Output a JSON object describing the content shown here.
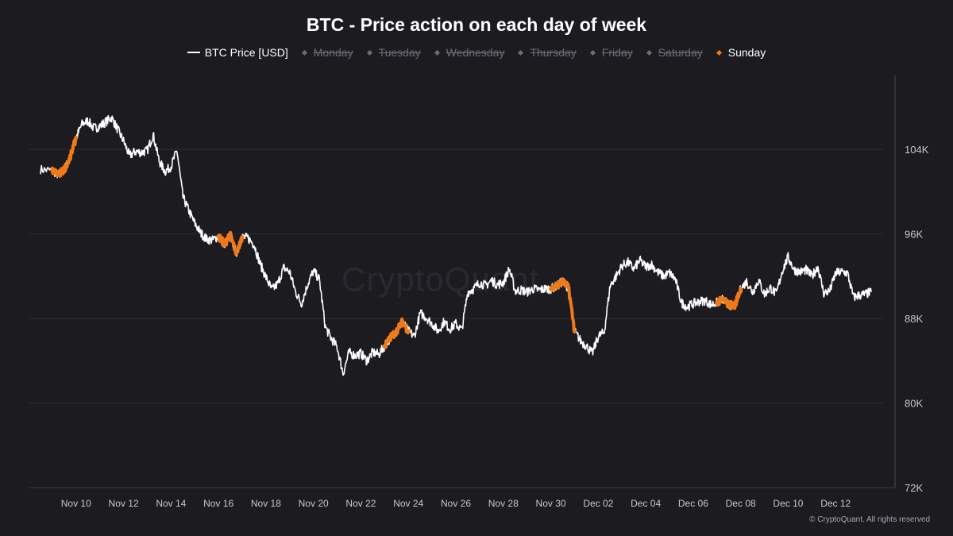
{
  "chart_title": "BTC - Price action on each day of week",
  "legend": {
    "items": [
      {
        "label": "BTC Price [USD]",
        "type": "line",
        "color": "#ffffff",
        "hidden": false
      },
      {
        "label": "Monday",
        "type": "marker",
        "color": "#6e6d75",
        "hidden": true
      },
      {
        "label": "Tuesday",
        "type": "marker",
        "color": "#6e6d75",
        "hidden": true
      },
      {
        "label": "Wednesday",
        "type": "marker",
        "color": "#6e6d75",
        "hidden": true
      },
      {
        "label": "Thursday",
        "type": "marker",
        "color": "#6e6d75",
        "hidden": true
      },
      {
        "label": "Friday",
        "type": "marker",
        "color": "#6e6d75",
        "hidden": true
      },
      {
        "label": "Saturday",
        "type": "marker",
        "color": "#6e6d75",
        "hidden": true
      },
      {
        "label": "Sunday",
        "type": "marker",
        "color": "#f07a1a",
        "hidden": false
      }
    ]
  },
  "watermark": "CryptoQuant",
  "footer": "© CryptoQuant. All rights reserved",
  "colors": {
    "background": "#1c1b20",
    "price_line": "#ffffff",
    "sunday": "#f07a1a",
    "grid": "#2e2d34",
    "axis_text": "#c8c7cc"
  },
  "chart_data": {
    "type": "line",
    "title": "BTC - Price action on each day of week",
    "xlabel": "",
    "ylabel": "",
    "x_range": [
      "2025-11-08",
      "2025-12-13"
    ],
    "x_tick_labels": [
      "Nov 10",
      "Nov 12",
      "Nov 14",
      "Nov 16",
      "Nov 18",
      "Nov 20",
      "Nov 22",
      "Nov 24",
      "Nov 26",
      "Nov 28",
      "Nov 30",
      "Dec 02",
      "Dec 04",
      "Dec 06",
      "Dec 08",
      "Dec 10",
      "Dec 12"
    ],
    "y_axis_position": "right",
    "ylim": [
      72000,
      111000
    ],
    "y_ticks": [
      72000,
      80000,
      88000,
      96000,
      104000
    ],
    "y_tick_labels": [
      "72K",
      "80K",
      "88K",
      "96K",
      "104K"
    ],
    "grid": "horizontal",
    "legend_position": "top-center",
    "series": [
      {
        "name": "BTC Price [USD]",
        "color": "#ffffff",
        "points": [
          [
            "2025-11-08 12:00",
            102100
          ],
          [
            "2025-11-09 00:00",
            102000
          ],
          [
            "2025-11-09 06:00",
            101600
          ],
          [
            "2025-11-09 12:00",
            102100
          ],
          [
            "2025-11-09 18:00",
            103200
          ],
          [
            "2025-11-10 00:00",
            105100
          ],
          [
            "2025-11-10 06:00",
            106400
          ],
          [
            "2025-11-10 12:00",
            106700
          ],
          [
            "2025-11-10 18:00",
            106000
          ],
          [
            "2025-11-11 00:00",
            106200
          ],
          [
            "2025-11-11 06:00",
            106600
          ],
          [
            "2025-11-11 12:00",
            107000
          ],
          [
            "2025-11-11 18:00",
            105900
          ],
          [
            "2025-11-12 00:00",
            104800
          ],
          [
            "2025-11-12 06:00",
            103400
          ],
          [
            "2025-11-12 12:00",
            103800
          ],
          [
            "2025-11-12 18:00",
            103700
          ],
          [
            "2025-11-13 00:00",
            103900
          ],
          [
            "2025-11-13 06:00",
            105400
          ],
          [
            "2025-11-13 12:00",
            102900
          ],
          [
            "2025-11-13 18:00",
            101900
          ],
          [
            "2025-11-14 00:00",
            102400
          ],
          [
            "2025-11-14 06:00",
            103900
          ],
          [
            "2025-11-14 12:00",
            99500
          ],
          [
            "2025-11-14 18:00",
            98200
          ],
          [
            "2025-11-15 00:00",
            97000
          ],
          [
            "2025-11-15 06:00",
            96100
          ],
          [
            "2025-11-15 12:00",
            95500
          ],
          [
            "2025-11-15 18:00",
            95400
          ],
          [
            "2025-11-16 00:00",
            95800
          ],
          [
            "2025-11-16 06:00",
            95000
          ],
          [
            "2025-11-16 12:00",
            95900
          ],
          [
            "2025-11-16 18:00",
            94200
          ],
          [
            "2025-11-17 00:00",
            95700
          ],
          [
            "2025-11-17 06:00",
            95600
          ],
          [
            "2025-11-17 12:00",
            95000
          ],
          [
            "2025-11-17 18:00",
            93200
          ],
          [
            "2025-11-18 00:00",
            91900
          ],
          [
            "2025-11-18 06:00",
            90700
          ],
          [
            "2025-11-18 12:00",
            91300
          ],
          [
            "2025-11-18 18:00",
            92800
          ],
          [
            "2025-11-19 00:00",
            92400
          ],
          [
            "2025-11-19 06:00",
            90500
          ],
          [
            "2025-11-19 12:00",
            89400
          ],
          [
            "2025-11-19 18:00",
            91200
          ],
          [
            "2025-11-20 00:00",
            92500
          ],
          [
            "2025-11-20 06:00",
            91700
          ],
          [
            "2025-11-20 12:00",
            87200
          ],
          [
            "2025-11-20 18:00",
            86100
          ],
          [
            "2025-11-21 00:00",
            85300
          ],
          [
            "2025-11-21 06:00",
            82800
          ],
          [
            "2025-11-21 12:00",
            84800
          ],
          [
            "2025-11-21 18:00",
            84500
          ],
          [
            "2025-11-22 00:00",
            84700
          ],
          [
            "2025-11-22 06:00",
            84000
          ],
          [
            "2025-11-22 12:00",
            84800
          ],
          [
            "2025-11-22 18:00",
            84600
          ],
          [
            "2025-11-23 00:00",
            85400
          ],
          [
            "2025-11-23 06:00",
            86200
          ],
          [
            "2025-11-23 12:00",
            86800
          ],
          [
            "2025-11-23 18:00",
            87700
          ],
          [
            "2025-11-24 00:00",
            86800
          ],
          [
            "2025-11-24 06:00",
            86300
          ],
          [
            "2025-11-24 12:00",
            88500
          ],
          [
            "2025-11-24 18:00",
            88100
          ],
          [
            "2025-11-25 00:00",
            87500
          ],
          [
            "2025-11-25 06:00",
            86800
          ],
          [
            "2025-11-25 12:00",
            87700
          ],
          [
            "2025-11-25 18:00",
            87000
          ],
          [
            "2025-11-26 00:00",
            87500
          ],
          [
            "2025-11-26 06:00",
            86900
          ],
          [
            "2025-11-26 12:00",
            90500
          ],
          [
            "2025-11-26 18:00",
            90800
          ],
          [
            "2025-11-27 00:00",
            91400
          ],
          [
            "2025-11-27 06:00",
            91100
          ],
          [
            "2025-11-27 12:00",
            91600
          ],
          [
            "2025-11-27 18:00",
            91200
          ],
          [
            "2025-11-28 00:00",
            91400
          ],
          [
            "2025-11-28 06:00",
            92700
          ],
          [
            "2025-11-28 12:00",
            90600
          ],
          [
            "2025-11-28 18:00",
            90700
          ],
          [
            "2025-11-29 00:00",
            90500
          ],
          [
            "2025-11-29 06:00",
            90800
          ],
          [
            "2025-11-29 12:00",
            90700
          ],
          [
            "2025-11-29 18:00",
            90800
          ],
          [
            "2025-11-30 00:00",
            90800
          ],
          [
            "2025-11-30 06:00",
            91100
          ],
          [
            "2025-11-30 12:00",
            91500
          ],
          [
            "2025-11-30 18:00",
            90900
          ],
          [
            "2025-12-01 00:00",
            86800
          ],
          [
            "2025-12-01 06:00",
            85900
          ],
          [
            "2025-12-01 12:00",
            85400
          ],
          [
            "2025-12-01 18:00",
            84700
          ],
          [
            "2025-12-02 00:00",
            86300
          ],
          [
            "2025-12-02 06:00",
            86700
          ],
          [
            "2025-12-02 12:00",
            91100
          ],
          [
            "2025-12-02 18:00",
            92000
          ],
          [
            "2025-12-03 00:00",
            93000
          ],
          [
            "2025-12-03 06:00",
            93300
          ],
          [
            "2025-12-03 12:00",
            92700
          ],
          [
            "2025-12-03 18:00",
            93500
          ],
          [
            "2025-12-04 00:00",
            92900
          ],
          [
            "2025-12-04 06:00",
            93100
          ],
          [
            "2025-12-04 12:00",
            92400
          ],
          [
            "2025-12-04 18:00",
            92000
          ],
          [
            "2025-12-05 00:00",
            92300
          ],
          [
            "2025-12-05 06:00",
            91700
          ],
          [
            "2025-12-05 12:00",
            89500
          ],
          [
            "2025-12-05 18:00",
            89100
          ],
          [
            "2025-12-06 00:00",
            89400
          ],
          [
            "2025-12-06 06:00",
            89600
          ],
          [
            "2025-12-06 12:00",
            89700
          ],
          [
            "2025-12-06 18:00",
            89300
          ],
          [
            "2025-12-07 00:00",
            89500
          ],
          [
            "2025-12-07 06:00",
            89800
          ],
          [
            "2025-12-07 12:00",
            89300
          ],
          [
            "2025-12-07 18:00",
            89200
          ],
          [
            "2025-12-08 00:00",
            90800
          ],
          [
            "2025-12-08 06:00",
            91500
          ],
          [
            "2025-12-08 12:00",
            90500
          ],
          [
            "2025-12-08 18:00",
            91600
          ],
          [
            "2025-12-09 00:00",
            90300
          ],
          [
            "2025-12-09 06:00",
            90900
          ],
          [
            "2025-12-09 12:00",
            90300
          ],
          [
            "2025-12-09 18:00",
            92500
          ],
          [
            "2025-12-10 00:00",
            93800
          ],
          [
            "2025-12-10 06:00",
            92600
          ],
          [
            "2025-12-10 12:00",
            92400
          ],
          [
            "2025-12-10 18:00",
            92600
          ],
          [
            "2025-12-11 00:00",
            92000
          ],
          [
            "2025-12-11 06:00",
            92900
          ],
          [
            "2025-12-11 12:00",
            90400
          ],
          [
            "2025-12-11 18:00",
            90600
          ],
          [
            "2025-12-12 00:00",
            92300
          ],
          [
            "2025-12-12 06:00",
            92400
          ],
          [
            "2025-12-12 12:00",
            92300
          ],
          [
            "2025-12-12 18:00",
            90000
          ],
          [
            "2025-12-13 00:00",
            90200
          ],
          [
            "2025-12-13 06:00",
            90300
          ],
          [
            "2025-12-13 12:00",
            90500
          ]
        ]
      },
      {
        "name": "Sunday",
        "color": "#f07a1a",
        "points": [
          [
            "2025-11-09 00:00",
            102000
          ],
          [
            "2025-11-09 06:00",
            101600
          ],
          [
            "2025-11-09 12:00",
            102100
          ],
          [
            "2025-11-09 18:00",
            103200
          ],
          [
            "2025-11-10 00:00",
            105100
          ],
          [
            "2025-11-16 00:00",
            95800
          ],
          [
            "2025-11-16 06:00",
            95000
          ],
          [
            "2025-11-16 12:00",
            95900
          ],
          [
            "2025-11-16 18:00",
            94200
          ],
          [
            "2025-11-17 00:00",
            95700
          ],
          [
            "2025-11-23 00:00",
            85400
          ],
          [
            "2025-11-23 06:00",
            86200
          ],
          [
            "2025-11-23 12:00",
            86800
          ],
          [
            "2025-11-23 18:00",
            87700
          ],
          [
            "2025-11-24 00:00",
            86800
          ],
          [
            "2025-11-30 00:00",
            90800
          ],
          [
            "2025-11-30 06:00",
            91100
          ],
          [
            "2025-11-30 12:00",
            91500
          ],
          [
            "2025-11-30 18:00",
            90900
          ],
          [
            "2025-12-01 00:00",
            86800
          ],
          [
            "2025-12-07 00:00",
            89500
          ],
          [
            "2025-12-07 06:00",
            89800
          ],
          [
            "2025-12-07 12:00",
            89300
          ],
          [
            "2025-12-07 18:00",
            89200
          ],
          [
            "2025-12-08 00:00",
            90800
          ]
        ]
      }
    ]
  }
}
